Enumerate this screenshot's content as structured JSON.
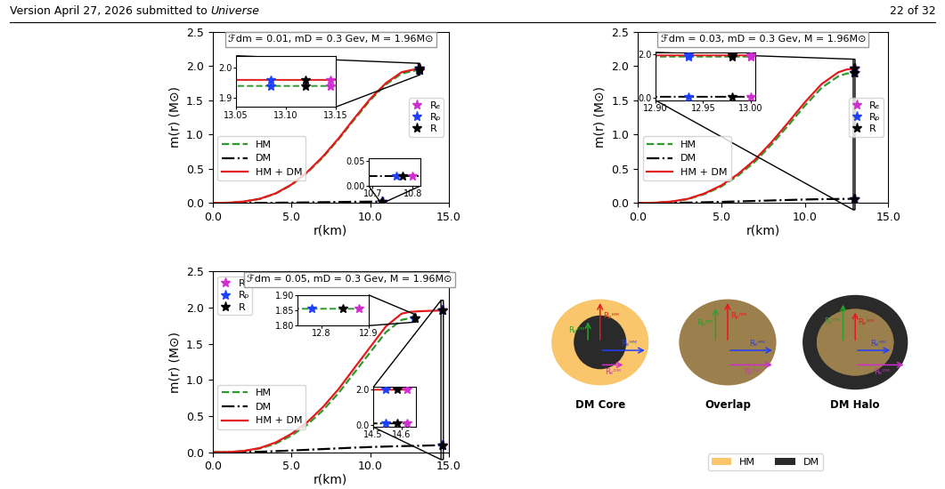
{
  "header": {
    "left": "Version April 27, 2026 submitted to",
    "journal": "Universe",
    "page": "22 of 32"
  },
  "chart_data": [
    {
      "type": "line",
      "title": "ℱdm = 0.01, mD = 0.3 Gev, M = 1.96M⊙",
      "x_label": "r(km)",
      "y_label": "m(r) (M⊙)",
      "xlim": [
        0.0,
        15.0
      ],
      "ylim": [
        0.0,
        2.5
      ],
      "xticks": [
        0.0,
        5.0,
        10.0,
        15.0
      ],
      "yticks": [
        0.0,
        0.5,
        1.0,
        1.5,
        2.0,
        2.5
      ],
      "legend": "lower left",
      "series": [
        {
          "name": "HM",
          "color": "#2e9a2e",
          "line_style": "dashed",
          "x": [
            0,
            1,
            2,
            3,
            4,
            5,
            6,
            7,
            8,
            9,
            10,
            11,
            12,
            13,
            13.15
          ],
          "values": [
            0,
            0.003,
            0.02,
            0.058,
            0.135,
            0.26,
            0.44,
            0.665,
            0.93,
            1.22,
            1.5,
            1.73,
            1.89,
            1.94,
            1.94
          ]
        },
        {
          "name": "DM",
          "color": "#000000",
          "line_style": "dashdot",
          "x": [
            0,
            2,
            4,
            6,
            8,
            9,
            10,
            10.5,
            10.7,
            10.82
          ],
          "values": [
            0,
            0.0005,
            0.003,
            0.008,
            0.014,
            0.017,
            0.019,
            0.0195,
            0.0196,
            0.0196
          ]
        },
        {
          "name": "HM + DM",
          "color": "#e41a1c",
          "line_style": "solid",
          "x": [
            0,
            1,
            2,
            3,
            4,
            5,
            6,
            7,
            8,
            9,
            10,
            11,
            12,
            13,
            13.15
          ],
          "values": [
            0,
            0.0035,
            0.021,
            0.061,
            0.14,
            0.268,
            0.45,
            0.678,
            0.944,
            1.237,
            1.519,
            1.75,
            1.91,
            1.96,
            1.96
          ]
        }
      ],
      "markers": {
        "legend": "center right",
        "series": [
          {
            "name": "Rₑ",
            "color": "#d02fd0",
            "marker": "star",
            "x": [
              13.145,
              13.145,
              10.8
            ],
            "values": [
              1.96,
              1.94,
              0.0196
            ]
          },
          {
            "name": "Rₚ",
            "color": "#1f3fff",
            "marker": "star",
            "x": [
              13.085,
              13.085,
              10.76
            ],
            "values": [
              1.96,
              1.94,
              0.0196
            ]
          },
          {
            "name": "R",
            "color": "#000000",
            "marker": "star",
            "x": [
              13.12,
              13.12,
              10.775
            ],
            "values": [
              1.96,
              1.94,
              0.0196
            ]
          }
        ]
      },
      "insets": [
        {
          "xlim": [
            13.05,
            13.15
          ],
          "ylim": [
            1.87,
            2.04
          ],
          "xticks": [
            13.05,
            {
              "value": 13.1,
              "label": "13.10"
            },
            13.15
          ],
          "yticks": [
            1.9,
            2.0
          ]
        },
        {
          "xlim": [
            10.69,
            10.82
          ],
          "ylim": [
            0.0,
            0.055
          ],
          "xticks": [
            10.7,
            10.8
          ],
          "yticks": [
            {
              "value": 0.0,
              "label": "0.00"
            },
            0.05
          ]
        }
      ]
    },
    {
      "type": "line",
      "title": "ℱdm = 0.03, mD = 0.3 Gev, M = 1.96M⊙",
      "x_label": "r(km)",
      "y_label": "m(r) (M⊙)",
      "xlim": [
        0.0,
        15.0
      ],
      "ylim": [
        0.0,
        2.5
      ],
      "xticks": [
        0.0,
        5.0,
        10.0,
        15.0
      ],
      "yticks": [
        0.0,
        0.5,
        1.0,
        1.5,
        2.0,
        2.5
      ],
      "legend": "lower left",
      "series": [
        {
          "name": "HM",
          "color": "#2e9a2e",
          "line_style": "dashed",
          "x": [
            0,
            1,
            2,
            3,
            4,
            5,
            6,
            7,
            8,
            9,
            10,
            11,
            12,
            12.5,
            12.9,
            13.0
          ],
          "values": [
            0,
            0.003,
            0.018,
            0.055,
            0.13,
            0.24,
            0.4,
            0.6,
            0.85,
            1.13,
            1.42,
            1.68,
            1.85,
            1.89,
            1.9,
            1.9
          ]
        },
        {
          "name": "DM",
          "color": "#000000",
          "line_style": "dashdot",
          "x": [
            0,
            1,
            2,
            3,
            4,
            5,
            6,
            7,
            8,
            9,
            10,
            11,
            12,
            12.5,
            12.9,
            13.0
          ],
          "values": [
            0,
            0.0003,
            0.002,
            0.005,
            0.01,
            0.016,
            0.022,
            0.029,
            0.036,
            0.043,
            0.05,
            0.055,
            0.058,
            0.059,
            0.06,
            0.06
          ]
        },
        {
          "name": "HM + DM",
          "color": "#e41a1c",
          "line_style": "solid",
          "x": [
            0,
            1,
            2,
            3,
            4,
            5,
            6,
            7,
            8,
            9,
            10,
            11,
            12,
            12.5,
            12.9,
            13.0
          ],
          "values": [
            0,
            0.0033,
            0.02,
            0.06,
            0.14,
            0.256,
            0.422,
            0.629,
            0.886,
            1.173,
            1.47,
            1.735,
            1.908,
            1.949,
            1.96,
            1.96
          ]
        }
      ],
      "markers": {
        "legend": "center right",
        "series": [
          {
            "name": "Rₑ",
            "color": "#d02fd0",
            "marker": "star",
            "x": [
              13.0,
              13.0,
              13.0
            ],
            "values": [
              1.96,
              1.9,
              0.06
            ]
          },
          {
            "name": "Rₚ",
            "color": "#1f3fff",
            "marker": "star",
            "x": [
              12.935,
              12.935,
              12.935
            ],
            "values": [
              1.96,
              1.9,
              0.06
            ]
          },
          {
            "name": "R",
            "color": "#000000",
            "marker": "star",
            "x": [
              12.98,
              12.98,
              12.98
            ],
            "values": [
              1.96,
              1.9,
              0.06
            ]
          }
        ]
      },
      "insets": [
        {
          "xlim": [
            12.9,
            13.005
          ],
          "ylim": [
            -0.1,
            2.1
          ],
          "xticks": [
            {
              "value": 12.9,
              "label": "12.90"
            },
            12.95,
            {
              "value": 13.0,
              "label": "13.00"
            }
          ],
          "yticks": [
            0.0,
            2.0
          ]
        }
      ]
    },
    {
      "type": "line",
      "title": "ℱdm = 0.05, mD = 0.3 Gev, M = 1.96M⊙",
      "x_label": "r(km)",
      "y_label": "m(r) (M⊙)",
      "xlim": [
        0.0,
        15.0
      ],
      "ylim": [
        0.0,
        2.5
      ],
      "xticks": [
        0.0,
        5.0,
        10.0,
        15.0
      ],
      "yticks": [
        0.0,
        0.5,
        1.0,
        1.5,
        2.0,
        2.5
      ],
      "legend": "lower left",
      "series": [
        {
          "name": "HM",
          "color": "#2e9a2e",
          "line_style": "dashed",
          "x": [
            0,
            1,
            2,
            3,
            4,
            5,
            6,
            7,
            8,
            9,
            10,
            11,
            12,
            12.5,
            12.75,
            12.88
          ],
          "values": [
            0,
            0.003,
            0.017,
            0.052,
            0.12,
            0.23,
            0.38,
            0.58,
            0.82,
            1.1,
            1.38,
            1.66,
            1.83,
            1.852,
            1.855,
            1.855
          ]
        },
        {
          "name": "DM",
          "color": "#000000",
          "line_style": "dashdot",
          "x": [
            0,
            1,
            2,
            3,
            4,
            5,
            6,
            7,
            8,
            9,
            10,
            11,
            12,
            12.5,
            13,
            14,
            14.5,
            14.62
          ],
          "values": [
            0,
            0.0005,
            0.003,
            0.008,
            0.016,
            0.025,
            0.035,
            0.045,
            0.055,
            0.065,
            0.073,
            0.08,
            0.086,
            0.088,
            0.09,
            0.096,
            0.098,
            0.098
          ]
        },
        {
          "name": "HM + DM",
          "color": "#e41a1c",
          "line_style": "solid",
          "x": [
            0,
            1,
            2,
            3,
            4,
            5,
            6,
            7,
            8,
            9,
            10,
            11,
            12,
            12.5,
            12.88,
            13,
            14,
            14.5,
            14.62
          ],
          "values": [
            0,
            0.0035,
            0.02,
            0.06,
            0.136,
            0.255,
            0.415,
            0.625,
            0.875,
            1.165,
            1.453,
            1.74,
            1.916,
            1.94,
            1.945,
            1.948,
            1.957,
            1.96,
            1.96
          ]
        }
      ],
      "markers": {
        "legend": "upper left",
        "series": [
          {
            "name": "Rₑ",
            "color": "#d02fd0",
            "marker": "star",
            "x": [
              12.88,
              14.62,
              14.62
            ],
            "values": [
              1.855,
              1.96,
              0.098
            ]
          },
          {
            "name": "Rₚ",
            "color": "#1f3fff",
            "marker": "star",
            "x": [
              12.78,
              14.545,
              14.545
            ],
            "values": [
              1.855,
              1.96,
              0.098
            ]
          },
          {
            "name": "R",
            "color": "#000000",
            "marker": "star",
            "x": [
              12.845,
              14.585,
              14.585
            ],
            "values": [
              1.855,
              1.96,
              0.098
            ]
          }
        ]
      },
      "insets": [
        {
          "xlim": [
            12.75,
            12.9
          ],
          "ylim": [
            1.8,
            1.9
          ],
          "xticks": [
            12.8,
            12.9
          ],
          "yticks": [
            {
              "value": 1.8,
              "label": "1.80"
            },
            1.85,
            {
              "value": 1.9,
              "label": "1.90"
            }
          ]
        },
        {
          "xlim": [
            14.5,
            14.65
          ],
          "ylim": [
            -0.1,
            2.1
          ],
          "xticks": [
            14.5,
            14.6
          ],
          "yticks": [
            0.0,
            2.0
          ]
        }
      ]
    }
  ],
  "diagram": {
    "panels": [
      {
        "title": "DM Core",
        "labels": [
          "Rₚᴰᴹ",
          "Rₚᴴᴹ",
          "Rₑᴴᴹ",
          "Rₑᴰᴹ"
        ]
      },
      {
        "title": "Overlap",
        "labels": [
          "Rₚᴰᴹ",
          "Rₚᴴᴹ",
          "Rₑᴴᴹ",
          "Rₑᴰᴹ"
        ]
      },
      {
        "title": "DM Halo",
        "labels": [
          "Rₚᴰᴹ",
          "Rₚᴴᴹ",
          "Rₑᴴᴹ",
          "Rₑᴰᴹ"
        ]
      }
    ],
    "legend": [
      {
        "name": "HM",
        "color": "#f9c66b"
      },
      {
        "name": "DM",
        "color": "#2a2a2a"
      }
    ]
  }
}
